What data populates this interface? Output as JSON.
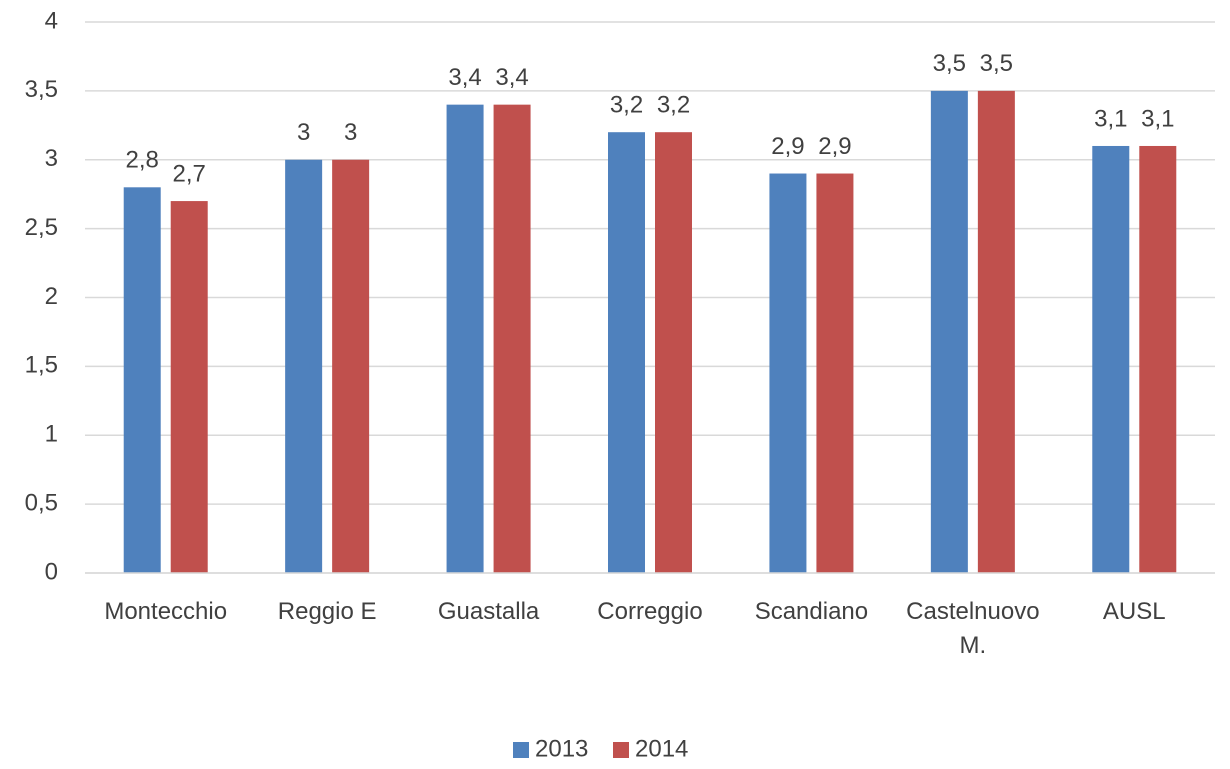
{
  "chart_data": {
    "type": "bar",
    "categories": [
      "Montecchio",
      "Reggio E",
      "Guastalla",
      "Correggio",
      "Scandiano",
      "Castelnuovo M.",
      "AUSL"
    ],
    "series": [
      {
        "name": "2013",
        "color": "#4f81bd",
        "values": [
          2.8,
          3,
          3.4,
          3.2,
          2.9,
          3.5,
          3.1
        ],
        "value_labels": [
          "2,8",
          "3",
          "3,4",
          "3,2",
          "2,9",
          "3,5",
          "3,1"
        ]
      },
      {
        "name": "2014",
        "color": "#c0504d",
        "values": [
          2.7,
          3,
          3.4,
          3.2,
          2.9,
          3.5,
          3.1
        ],
        "value_labels": [
          "2,7",
          "3",
          "3,4",
          "3,2",
          "2,9",
          "3,5",
          "3,1"
        ]
      }
    ],
    "ylim": [
      0,
      4
    ],
    "yticks": [
      0,
      {
        "value": 0.5,
        "label": "0,5"
      },
      1,
      {
        "value": 1.5,
        "label": "1,5"
      },
      2,
      {
        "value": 2.5,
        "label": "2,5"
      },
      3,
      {
        "value": 3.5,
        "label": "3,5"
      },
      4
    ],
    "grid": true,
    "legend": "bottom"
  }
}
